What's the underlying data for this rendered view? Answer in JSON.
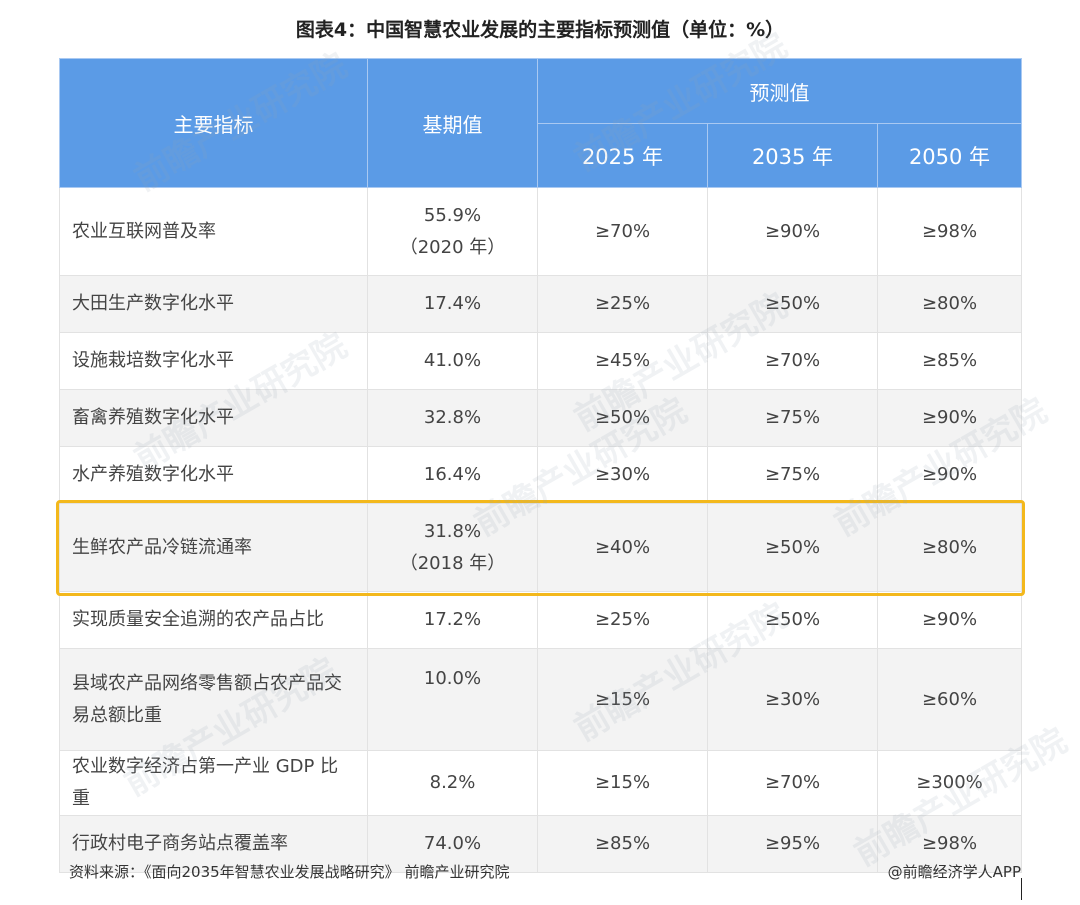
{
  "title": "图表4：中国智慧农业发展的主要指标预测值（单位：%）",
  "table": {
    "headers": {
      "indicator": "主要指标",
      "base": "基期值",
      "forecast": "预测值",
      "years": [
        "2025 年",
        "2035 年",
        "2050 年"
      ]
    },
    "rows": [
      {
        "name": "农业互联网普及率",
        "base": "55.9%",
        "base_note": "（2020 年）",
        "y2025": "≥70%",
        "y2035": "≥90%",
        "y2050": "≥98%"
      },
      {
        "name": "大田生产数字化水平",
        "base": "17.4%",
        "y2025": "≥25%",
        "y2035": "≥50%",
        "y2050": "≥80%"
      },
      {
        "name": "设施栽培数字化水平",
        "base": "41.0%",
        "y2025": "≥45%",
        "y2035": "≥70%",
        "y2050": "≥85%"
      },
      {
        "name": "畜禽养殖数字化水平",
        "base": "32.8%",
        "y2025": "≥50%",
        "y2035": "≥75%",
        "y2050": "≥90%"
      },
      {
        "name": "水产养殖数字化水平",
        "base": "16.4%",
        "y2025": "≥30%",
        "y2035": "≥75%",
        "y2050": "≥90%"
      },
      {
        "name": "生鲜农产品冷链流通率",
        "base": "31.8%",
        "base_note": "（2018 年）",
        "y2025": "≥40%",
        "y2035": "≥50%",
        "y2050": "≥80%"
      },
      {
        "name": "实现质量安全追溯的农产品占比",
        "base": "17.2%",
        "y2025": "≥25%",
        "y2035": "≥50%",
        "y2050": "≥90%"
      },
      {
        "name": "县域农产品网络零售额占农产品交易总额比重",
        "base": "10.0%",
        "y2025": "≥15%",
        "y2035": "≥30%",
        "y2050": "≥60%"
      },
      {
        "name": "农业数字经济占第一产业 GDP 比重",
        "base": "8.2%",
        "y2025": "≥15%",
        "y2035": "≥70%",
        "y2050": "≥300%"
      },
      {
        "name": "行政村电子商务站点覆盖率",
        "base": "74.0%",
        "y2025": "≥85%",
        "y2035": "≥95%",
        "y2050": "≥98%"
      }
    ]
  },
  "watermark": "前瞻产业研究院",
  "source": "资料来源：《面向2035年智慧农业发展战略研究》 前瞻产业研究院",
  "credit": "@前瞻经济学人APP",
  "colors": {
    "header_bg": "#5b9be6",
    "highlight": "#f3b81c",
    "stripe": "#f3f3f3"
  }
}
